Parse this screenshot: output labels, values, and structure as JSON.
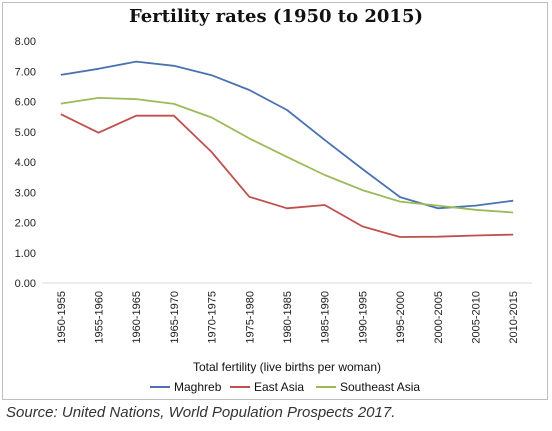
{
  "chart_data": {
    "type": "line",
    "title": "Fertility rates (1950 to 2015)",
    "xlabel": "Total fertility (live births per woman)",
    "ylabel": "",
    "ylim": [
      0,
      8
    ],
    "yticks": [
      "0.00",
      "1.00",
      "2.00",
      "3.00",
      "4.00",
      "5.00",
      "6.00",
      "7.00",
      "8.00"
    ],
    "categories": [
      "1950-1955",
      "1955-1960",
      "1960-1965",
      "1965-1970",
      "1970-1975",
      "1975-1980",
      "1980-1985",
      "1985-1990",
      "1990-1995",
      "1995-2000",
      "2000-2005",
      "2005-2010",
      "2010-2015"
    ],
    "grid": false,
    "legend_position": "bottom",
    "series": [
      {
        "name": "Maghreb",
        "color": "#4a72b0",
        "values": [
          6.88,
          7.08,
          7.32,
          7.18,
          6.87,
          6.38,
          5.72,
          4.73,
          3.77,
          2.84,
          2.47,
          2.56,
          2.72
        ]
      },
      {
        "name": "East Asia",
        "color": "#c0504d",
        "values": [
          5.58,
          4.97,
          5.53,
          5.53,
          4.33,
          2.85,
          2.47,
          2.58,
          1.87,
          1.52,
          1.53,
          1.57,
          1.6
        ]
      },
      {
        "name": "Southeast Asia",
        "color": "#9bbb59",
        "values": [
          5.93,
          6.12,
          6.08,
          5.92,
          5.47,
          4.78,
          4.17,
          3.57,
          3.07,
          2.69,
          2.56,
          2.42,
          2.33
        ]
      }
    ]
  },
  "source": "Source: United Nations, World Population Prospects 2017."
}
